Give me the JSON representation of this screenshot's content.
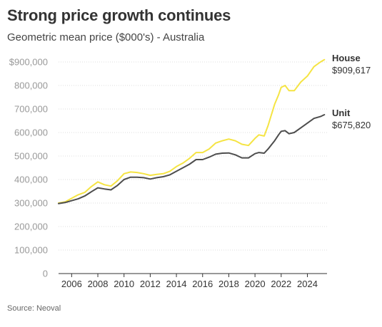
{
  "title": "Strong price growth continues",
  "subtitle": "Geometric mean price ($000's) - Australia",
  "source": "Source: Neoval",
  "colors": {
    "house": "#f5e443",
    "unit": "#4d4d4d"
  },
  "chart_data": {
    "type": "line",
    "title": "Strong price growth continues",
    "subtitle": "Geometric mean price ($000's) - Australia",
    "xlabel": "",
    "ylabel": "",
    "ylim": [
      0,
      900000
    ],
    "xlim": [
      2005,
      2025.5
    ],
    "y_ticks": [
      0,
      100000,
      200000,
      300000,
      400000,
      500000,
      600000,
      700000,
      800000,
      900000
    ],
    "y_tick_labels": [
      "0",
      "100,000",
      "200,000",
      "300,000",
      "400,000",
      "500,000",
      "600,000",
      "700,000",
      "800,000",
      "$900,000"
    ],
    "x_ticks": [
      2006,
      2008,
      2010,
      2012,
      2014,
      2016,
      2018,
      2020,
      2022,
      2024
    ],
    "x_tick_labels": [
      "2006",
      "2008",
      "2010",
      "2012",
      "2014",
      "2016",
      "2018",
      "2020",
      "2022",
      "2024"
    ],
    "grid": true,
    "legend": "direct labels at line ends",
    "series": [
      {
        "name": "House",
        "end_label": "$909,617",
        "x": [
          2005.0,
          2005.5,
          2006.0,
          2006.5,
          2007.0,
          2007.5,
          2008.0,
          2008.5,
          2009.0,
          2009.5,
          2010.0,
          2010.5,
          2011.0,
          2011.5,
          2012.0,
          2012.5,
          2013.0,
          2013.5,
          2014.0,
          2014.5,
          2015.0,
          2015.5,
          2016.0,
          2016.5,
          2017.0,
          2017.5,
          2018.0,
          2018.5,
          2019.0,
          2019.5,
          2020.0,
          2020.3,
          2020.7,
          2021.0,
          2021.5,
          2021.8,
          2022.0,
          2022.3,
          2022.6,
          2023.0,
          2023.5,
          2024.0,
          2024.5,
          2025.0,
          2025.3
        ],
        "y": [
          300000,
          305000,
          320000,
          335000,
          345000,
          370000,
          390000,
          378000,
          372000,
          395000,
          425000,
          432000,
          430000,
          425000,
          418000,
          422000,
          425000,
          435000,
          455000,
          470000,
          490000,
          515000,
          515000,
          530000,
          555000,
          565000,
          572000,
          565000,
          550000,
          545000,
          575000,
          590000,
          585000,
          630000,
          720000,
          760000,
          792000,
          800000,
          778000,
          778000,
          815000,
          840000,
          880000,
          900000,
          909617
        ]
      },
      {
        "name": "Unit",
        "end_label": "$675,820",
        "x": [
          2005.0,
          2005.5,
          2006.0,
          2006.5,
          2007.0,
          2007.5,
          2008.0,
          2008.5,
          2009.0,
          2009.5,
          2010.0,
          2010.5,
          2011.0,
          2011.5,
          2012.0,
          2012.5,
          2013.0,
          2013.5,
          2014.0,
          2014.5,
          2015.0,
          2015.5,
          2016.0,
          2016.5,
          2017.0,
          2017.5,
          2018.0,
          2018.5,
          2019.0,
          2019.5,
          2020.0,
          2020.3,
          2020.7,
          2021.0,
          2021.5,
          2021.8,
          2022.0,
          2022.3,
          2022.6,
          2023.0,
          2023.5,
          2024.0,
          2024.5,
          2025.0,
          2025.3
        ],
        "y": [
          298000,
          302000,
          310000,
          318000,
          330000,
          348000,
          365000,
          360000,
          356000,
          375000,
          400000,
          410000,
          410000,
          408000,
          402000,
          408000,
          412000,
          420000,
          435000,
          450000,
          465000,
          485000,
          485000,
          495000,
          508000,
          512000,
          513000,
          505000,
          492000,
          492000,
          510000,
          515000,
          512000,
          530000,
          565000,
          590000,
          605000,
          608000,
          595000,
          600000,
          620000,
          640000,
          660000,
          668000,
          675820
        ]
      }
    ]
  }
}
